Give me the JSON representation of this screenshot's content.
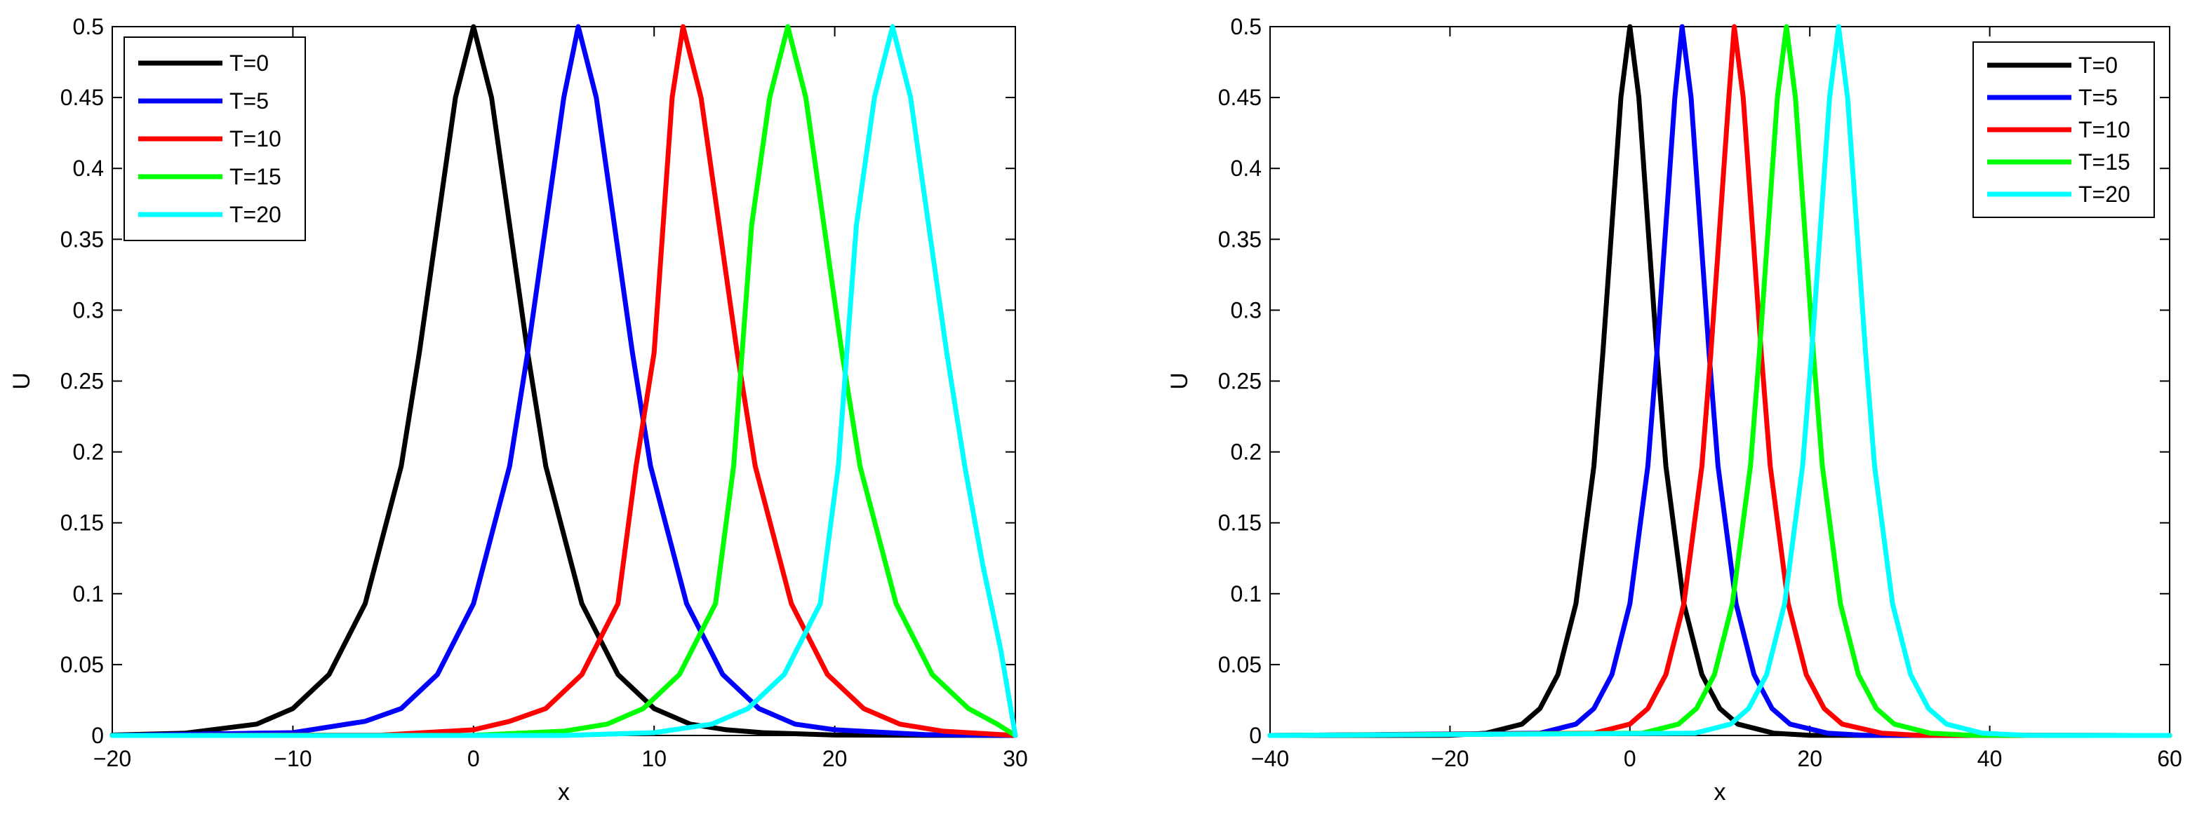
{
  "chart_data": [
    {
      "type": "line",
      "title": "",
      "xlabel": "x",
      "ylabel": "U",
      "xlim": [
        -20,
        30
      ],
      "ylim": [
        0,
        0.5
      ],
      "xticks": [
        "−20",
        "−10",
        "0",
        "10",
        "20",
        "30"
      ],
      "xtick_values": [
        -20,
        -10,
        0,
        10,
        20,
        30
      ],
      "yticks": [
        "0",
        "0.05",
        "0.1",
        "0.15",
        "0.2",
        "0.25",
        "0.3",
        "0.35",
        "0.4",
        "0.45",
        "0.5"
      ],
      "ytick_values": [
        0,
        0.05,
        0.1,
        0.15,
        0.2,
        0.25,
        0.3,
        0.35,
        0.4,
        0.45,
        0.5
      ],
      "grid": false,
      "legend": "top-left",
      "series": [
        {
          "name": "T=0",
          "color": "#000000",
          "x": [
            -20,
            -16,
            -12,
            -10,
            -8,
            -6,
            -4,
            -3,
            -2,
            -1,
            0,
            1,
            2,
            3,
            4,
            6,
            8,
            10,
            12,
            14,
            16,
            20,
            25,
            30
          ],
          "y": [
            0.0003,
            0.0016,
            0.008,
            0.019,
            0.043,
            0.093,
            0.19,
            0.27,
            0.36,
            0.45,
            0.5,
            0.45,
            0.36,
            0.27,
            0.19,
            0.093,
            0.043,
            0.019,
            0.008,
            0.004,
            0.002,
            0.0003,
            0.0001,
            0
          ]
        },
        {
          "name": "T=5",
          "color": "#0000ff",
          "x": [
            -20,
            -10,
            -6,
            -4,
            -2,
            0,
            2,
            3,
            4,
            5,
            5.8,
            6.8,
            7.8,
            8.8,
            9.8,
            11.8,
            13.8,
            15.8,
            17.8,
            20,
            25,
            30
          ],
          "y": [
            0.0,
            0.002,
            0.01,
            0.019,
            0.043,
            0.093,
            0.19,
            0.27,
            0.36,
            0.45,
            0.5,
            0.45,
            0.36,
            0.27,
            0.19,
            0.093,
            0.043,
            0.019,
            0.008,
            0.004,
            0.0006,
            0
          ]
        },
        {
          "name": "T=10",
          "color": "#ff0000",
          "x": [
            -20,
            -5,
            0,
            2,
            4,
            6,
            8,
            9,
            10,
            11,
            11.6,
            12.6,
            13.6,
            14.6,
            15.6,
            17.6,
            19.6,
            21.6,
            23.6,
            26,
            30
          ],
          "y": [
            0.0,
            0.0003,
            0.004,
            0.01,
            0.019,
            0.043,
            0.093,
            0.19,
            0.27,
            0.45,
            0.5,
            0.45,
            0.36,
            0.27,
            0.19,
            0.093,
            0.043,
            0.019,
            0.008,
            0.003,
            0
          ]
        },
        {
          "name": "T=15",
          "color": "#00ff00",
          "x": [
            -20,
            0,
            5,
            7.4,
            9.4,
            11.4,
            13.4,
            14.4,
            15.4,
            16.4,
            17.4,
            18.4,
            19.4,
            20.4,
            21.4,
            23.4,
            25.4,
            27.4,
            29,
            30
          ],
          "y": [
            0.0,
            0.0001,
            0.003,
            0.008,
            0.019,
            0.043,
            0.093,
            0.19,
            0.36,
            0.45,
            0.5,
            0.45,
            0.36,
            0.27,
            0.19,
            0.093,
            0.043,
            0.019,
            0.008,
            0
          ]
        },
        {
          "name": "T=20",
          "color": "#00ffff",
          "x": [
            -20,
            5,
            10,
            13.2,
            15.2,
            17.2,
            19.2,
            20.2,
            21.2,
            22.2,
            23.2,
            24.2,
            25.2,
            26.2,
            27.2,
            28.2,
            29.2,
            30
          ],
          "y": [
            0.0,
            0.0,
            0.002,
            0.008,
            0.019,
            0.043,
            0.093,
            0.19,
            0.36,
            0.45,
            0.5,
            0.45,
            0.36,
            0.27,
            0.19,
            0.12,
            0.06,
            0
          ]
        }
      ]
    },
    {
      "type": "line",
      "title": "",
      "xlabel": "x",
      "ylabel": "U",
      "xlim": [
        -40,
        60
      ],
      "ylim": [
        0,
        0.5
      ],
      "xticks": [
        "−40",
        "−20",
        "0",
        "20",
        "40",
        "60"
      ],
      "xtick_values": [
        -40,
        -20,
        0,
        20,
        40,
        60
      ],
      "yticks": [
        "0",
        "0.05",
        "0.1",
        "0.15",
        "0.2",
        "0.25",
        "0.3",
        "0.35",
        "0.4",
        "0.45",
        "0.5"
      ],
      "ytick_values": [
        0,
        0.05,
        0.1,
        0.15,
        0.2,
        0.25,
        0.3,
        0.35,
        0.4,
        0.45,
        0.5
      ],
      "grid": false,
      "legend": "top-right",
      "series": [
        {
          "name": "T=0",
          "color": "#000000",
          "x": [
            -40,
            -20,
            -16,
            -12,
            -10,
            -8,
            -6,
            -4,
            -3,
            -2,
            -1,
            0,
            1,
            2,
            3,
            4,
            6,
            8,
            10,
            12,
            16,
            20,
            60
          ],
          "y": [
            0,
            0.0001,
            0.0016,
            0.008,
            0.019,
            0.043,
            0.093,
            0.19,
            0.27,
            0.36,
            0.45,
            0.5,
            0.45,
            0.36,
            0.27,
            0.19,
            0.093,
            0.043,
            0.019,
            0.008,
            0.0016,
            0.0001,
            0
          ]
        },
        {
          "name": "T=5",
          "color": "#0000ff",
          "x": [
            -40,
            -10,
            -6,
            -4,
            -2,
            0,
            2,
            3,
            4,
            5,
            5.8,
            6.8,
            7.8,
            8.8,
            9.8,
            11.8,
            13.8,
            15.8,
            17.8,
            22,
            26,
            60
          ],
          "y": [
            0,
            0.0016,
            0.008,
            0.019,
            0.043,
            0.093,
            0.19,
            0.27,
            0.36,
            0.45,
            0.5,
            0.45,
            0.36,
            0.27,
            0.19,
            0.093,
            0.043,
            0.019,
            0.008,
            0.0016,
            0.0001,
            0
          ]
        },
        {
          "name": "T=10",
          "color": "#ff0000",
          "x": [
            -40,
            -4,
            0,
            2,
            4,
            6,
            8,
            9,
            10,
            11,
            11.6,
            12.6,
            13.6,
            14.6,
            15.6,
            17.6,
            19.6,
            21.6,
            23.6,
            28,
            32,
            60
          ],
          "y": [
            0,
            0.0016,
            0.008,
            0.019,
            0.043,
            0.093,
            0.19,
            0.27,
            0.36,
            0.45,
            0.5,
            0.45,
            0.36,
            0.27,
            0.19,
            0.093,
            0.043,
            0.019,
            0.008,
            0.0016,
            0.0001,
            0
          ]
        },
        {
          "name": "T=15",
          "color": "#00ff00",
          "x": [
            -40,
            1.4,
            5.4,
            7.4,
            9.4,
            11.4,
            13.4,
            14.4,
            15.4,
            16.4,
            17.4,
            18.4,
            19.4,
            20.4,
            21.4,
            23.4,
            25.4,
            27.4,
            29.4,
            33.4,
            38,
            60
          ],
          "y": [
            0,
            0.0016,
            0.008,
            0.019,
            0.043,
            0.093,
            0.19,
            0.27,
            0.36,
            0.45,
            0.5,
            0.45,
            0.36,
            0.27,
            0.19,
            0.093,
            0.043,
            0.019,
            0.008,
            0.0016,
            0.0001,
            0
          ]
        },
        {
          "name": "T=20",
          "color": "#00ffff",
          "x": [
            -40,
            7.2,
            11.2,
            13.2,
            15.2,
            17.2,
            19.2,
            20.2,
            21.2,
            22.2,
            23.2,
            24.2,
            25.2,
            26.2,
            27.2,
            29.2,
            31.2,
            33.2,
            35.2,
            39.2,
            44,
            60
          ],
          "y": [
            0,
            0.0016,
            0.008,
            0.019,
            0.043,
            0.093,
            0.19,
            0.27,
            0.36,
            0.45,
            0.5,
            0.45,
            0.36,
            0.27,
            0.19,
            0.093,
            0.043,
            0.019,
            0.008,
            0.0016,
            0.0001,
            0
          ]
        }
      ]
    }
  ]
}
